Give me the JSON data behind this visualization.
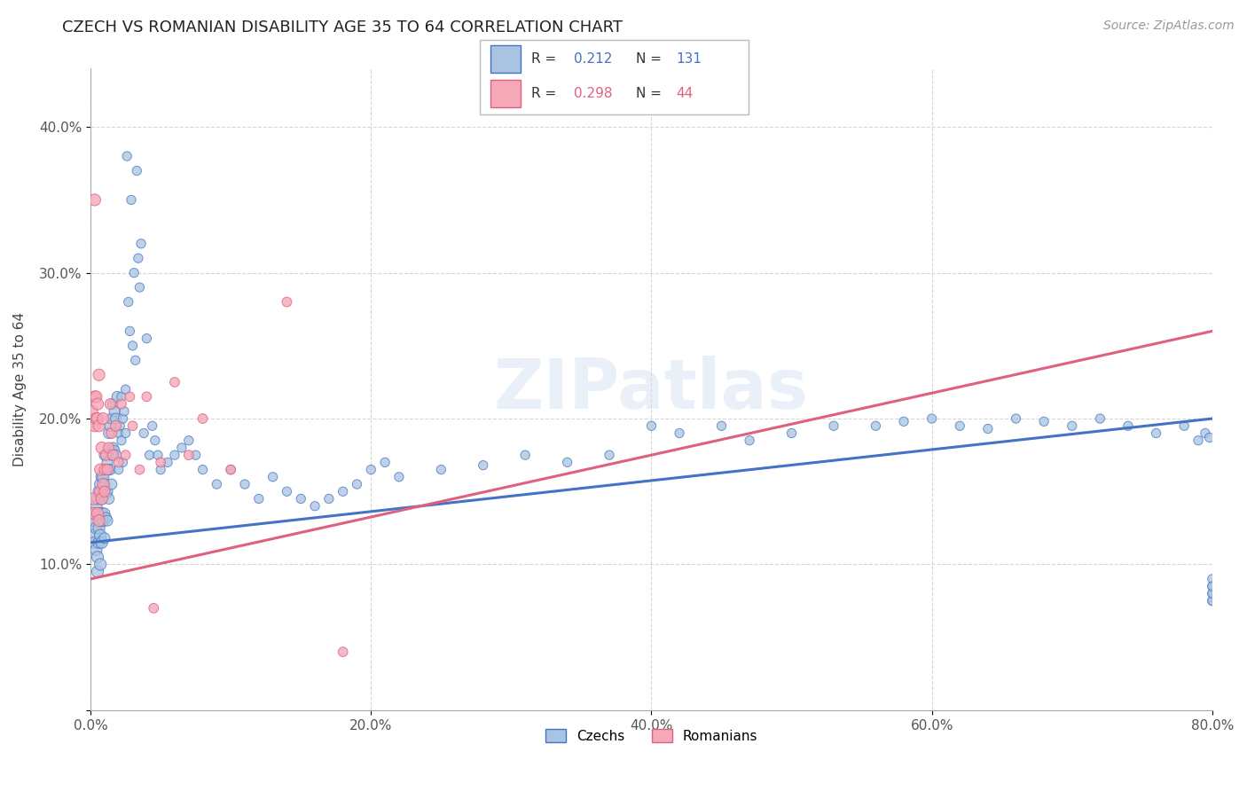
{
  "title": "CZECH VS ROMANIAN DISABILITY AGE 35 TO 64 CORRELATION CHART",
  "source": "Source: ZipAtlas.com",
  "ylabel": "Disability Age 35 to 64",
  "xlabel": "",
  "xlim": [
    0.0,
    0.8
  ],
  "ylim": [
    0.0,
    0.44
  ],
  "xticks": [
    0.0,
    0.2,
    0.4,
    0.6,
    0.8
  ],
  "xtick_labels": [
    "0.0%",
    "20.0%",
    "40.0%",
    "60.0%",
    "80.0%"
  ],
  "yticks": [
    0.0,
    0.1,
    0.2,
    0.3,
    0.4
  ],
  "ytick_labels": [
    "",
    "10.0%",
    "20.0%",
    "30.0%",
    "40.0%"
  ],
  "czech_color": "#a8c4e0",
  "romanian_color": "#f4a8b8",
  "czech_line_color": "#4472c4",
  "romanian_line_color": "#e06080",
  "watermark": "ZIPatlas",
  "R_czech": 0.212,
  "N_czech": 131,
  "R_romanian": 0.298,
  "N_romanian": 44,
  "legend_labels": [
    "Czechs",
    "Romanians"
  ],
  "czech_scatter_x": [
    0.001,
    0.002,
    0.003,
    0.003,
    0.004,
    0.004,
    0.004,
    0.005,
    0.005,
    0.005,
    0.006,
    0.006,
    0.006,
    0.006,
    0.007,
    0.007,
    0.007,
    0.007,
    0.008,
    0.008,
    0.008,
    0.008,
    0.009,
    0.009,
    0.009,
    0.01,
    0.01,
    0.01,
    0.01,
    0.011,
    0.011,
    0.011,
    0.012,
    0.012,
    0.012,
    0.013,
    0.013,
    0.013,
    0.014,
    0.014,
    0.015,
    0.015,
    0.015,
    0.016,
    0.016,
    0.017,
    0.017,
    0.018,
    0.018,
    0.019,
    0.02,
    0.02,
    0.021,
    0.022,
    0.022,
    0.023,
    0.023,
    0.024,
    0.025,
    0.025,
    0.026,
    0.027,
    0.028,
    0.029,
    0.03,
    0.031,
    0.032,
    0.033,
    0.034,
    0.035,
    0.036,
    0.038,
    0.04,
    0.042,
    0.044,
    0.046,
    0.048,
    0.05,
    0.055,
    0.06,
    0.065,
    0.07,
    0.075,
    0.08,
    0.09,
    0.1,
    0.11,
    0.12,
    0.13,
    0.14,
    0.15,
    0.16,
    0.17,
    0.18,
    0.19,
    0.2,
    0.21,
    0.22,
    0.25,
    0.28,
    0.31,
    0.34,
    0.37,
    0.4,
    0.42,
    0.45,
    0.47,
    0.5,
    0.53,
    0.56,
    0.58,
    0.6,
    0.62,
    0.64,
    0.66,
    0.68,
    0.7,
    0.72,
    0.74,
    0.76,
    0.78,
    0.79,
    0.795,
    0.798,
    0.8,
    0.8,
    0.8,
    0.8,
    0.8,
    0.8,
    0.8
  ],
  "czech_scatter_y": [
    0.13,
    0.12,
    0.135,
    0.115,
    0.125,
    0.11,
    0.14,
    0.145,
    0.105,
    0.095,
    0.15,
    0.135,
    0.125,
    0.115,
    0.155,
    0.13,
    0.12,
    0.1,
    0.16,
    0.145,
    0.135,
    0.115,
    0.16,
    0.15,
    0.13,
    0.175,
    0.155,
    0.135,
    0.118,
    0.165,
    0.148,
    0.132,
    0.17,
    0.15,
    0.13,
    0.19,
    0.165,
    0.145,
    0.195,
    0.165,
    0.2,
    0.175,
    0.155,
    0.21,
    0.18,
    0.205,
    0.178,
    0.2,
    0.175,
    0.215,
    0.19,
    0.165,
    0.195,
    0.215,
    0.185,
    0.2,
    0.17,
    0.205,
    0.22,
    0.19,
    0.38,
    0.28,
    0.26,
    0.35,
    0.25,
    0.3,
    0.24,
    0.37,
    0.31,
    0.29,
    0.32,
    0.19,
    0.255,
    0.175,
    0.195,
    0.185,
    0.175,
    0.165,
    0.17,
    0.175,
    0.18,
    0.185,
    0.175,
    0.165,
    0.155,
    0.165,
    0.155,
    0.145,
    0.16,
    0.15,
    0.145,
    0.14,
    0.145,
    0.15,
    0.155,
    0.165,
    0.17,
    0.16,
    0.165,
    0.168,
    0.175,
    0.17,
    0.175,
    0.195,
    0.19,
    0.195,
    0.185,
    0.19,
    0.195,
    0.195,
    0.198,
    0.2,
    0.195,
    0.193,
    0.2,
    0.198,
    0.195,
    0.2,
    0.195,
    0.19,
    0.195,
    0.185,
    0.19,
    0.187,
    0.075,
    0.085,
    0.09,
    0.08,
    0.075,
    0.08,
    0.085
  ],
  "romanian_scatter_x": [
    0.001,
    0.002,
    0.002,
    0.003,
    0.003,
    0.003,
    0.004,
    0.004,
    0.005,
    0.005,
    0.005,
    0.006,
    0.006,
    0.006,
    0.007,
    0.007,
    0.008,
    0.008,
    0.009,
    0.009,
    0.01,
    0.01,
    0.011,
    0.012,
    0.013,
    0.014,
    0.015,
    0.016,
    0.018,
    0.02,
    0.022,
    0.025,
    0.028,
    0.03,
    0.035,
    0.04,
    0.045,
    0.05,
    0.06,
    0.07,
    0.08,
    0.1,
    0.14,
    0.18
  ],
  "romanian_scatter_y": [
    0.205,
    0.145,
    0.135,
    0.35,
    0.215,
    0.195,
    0.215,
    0.2,
    0.21,
    0.2,
    0.135,
    0.23,
    0.195,
    0.13,
    0.165,
    0.15,
    0.145,
    0.18,
    0.155,
    0.2,
    0.165,
    0.15,
    0.175,
    0.165,
    0.18,
    0.21,
    0.19,
    0.175,
    0.195,
    0.17,
    0.21,
    0.175,
    0.215,
    0.195,
    0.165,
    0.215,
    0.07,
    0.17,
    0.225,
    0.175,
    0.2,
    0.165,
    0.28,
    0.04
  ],
  "background_color": "#ffffff",
  "grid_color": "#cccccc",
  "title_fontsize": 13,
  "axis_label_fontsize": 11,
  "tick_fontsize": 11,
  "legend_fontsize": 11,
  "source_fontsize": 10
}
